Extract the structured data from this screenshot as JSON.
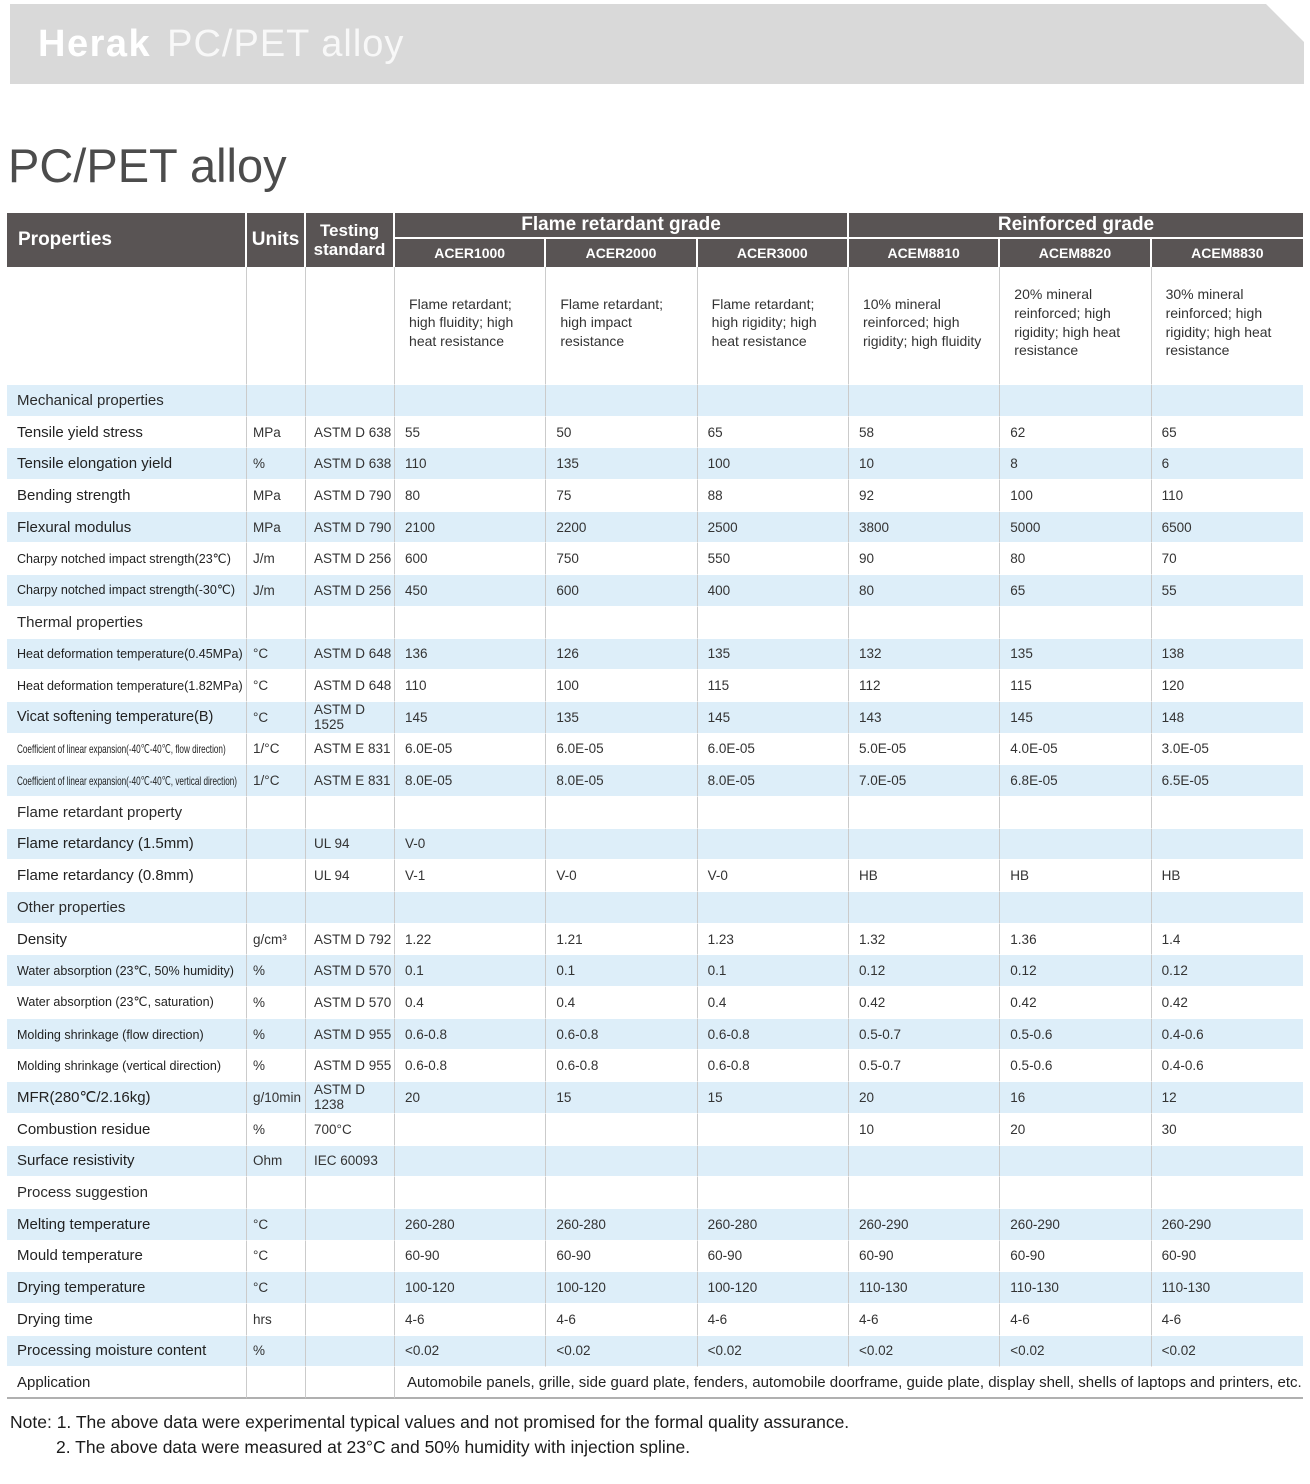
{
  "banner": {
    "brand": "Herak",
    "subtitle": "PC/PET alloy"
  },
  "page_title": "PC/PET alloy",
  "colors": {
    "banner_bg": "#d9d9d9",
    "header_bg": "#595454",
    "stripe_blue": "#ddeef9",
    "title_gray": "#4c4c4c"
  },
  "table": {
    "header": {
      "properties": "Properties",
      "units": "Units",
      "testing_standard": "Testing standard",
      "groups": [
        {
          "label": "Flame retardant grade",
          "products": [
            "ACER1000",
            "ACER2000",
            "ACER3000"
          ]
        },
        {
          "label": "Reinforced grade",
          "products": [
            "ACEM8810",
            "ACEM8820",
            "ACEM8830"
          ]
        }
      ]
    },
    "descriptions": [
      "Flame retardant; high fluidity; high heat resistance",
      "Flame retardant; high impact resistance",
      "Flame retardant; high rigidity; high heat resistance",
      "10% mineral reinforced; high rigidity; high fluidity",
      "20% mineral reinforced; high rigidity; high heat resistance",
      "30% mineral reinforced; high rigidity; high heat resistance"
    ],
    "rows": [
      {
        "type": "section",
        "label": "Mechanical properties",
        "unit": "",
        "standard": "",
        "values": [
          "",
          "",
          "",
          "",
          "",
          ""
        ]
      },
      {
        "type": "data",
        "label": "Tensile yield stress",
        "unit": "MPa",
        "standard": "ASTM D 638",
        "values": [
          "55",
          "50",
          "65",
          "58",
          "62",
          "65"
        ]
      },
      {
        "type": "data",
        "label": "Tensile elongation yield",
        "unit": "%",
        "standard": "ASTM D 638",
        "values": [
          "110",
          "135",
          "100",
          "10",
          "8",
          "6"
        ]
      },
      {
        "type": "data",
        "label": "Bending strength",
        "unit": "MPa",
        "standard": "ASTM D 790",
        "values": [
          "80",
          "75",
          "88",
          "92",
          "100",
          "110"
        ]
      },
      {
        "type": "data",
        "label": "Flexural modulus",
        "unit": "MPa",
        "standard": "ASTM D 790",
        "values": [
          "2100",
          "2200",
          "2500",
          "3800",
          "5000",
          "6500"
        ]
      },
      {
        "type": "data",
        "label": "Charpy notched impact strength(23℃)",
        "unit": "J/m",
        "standard": "ASTM D 256",
        "values": [
          "600",
          "750",
          "550",
          "90",
          "80",
          "70"
        ]
      },
      {
        "type": "data",
        "label": "Charpy notched impact strength(-30℃)",
        "unit": "J/m",
        "standard": "ASTM D 256",
        "values": [
          "450",
          "600",
          "400",
          "80",
          "65",
          "55"
        ]
      },
      {
        "type": "section",
        "label": "Thermal properties",
        "unit": "",
        "standard": "",
        "values": [
          "",
          "",
          "",
          "",
          "",
          ""
        ]
      },
      {
        "type": "data",
        "label": "Heat deformation temperature(0.45MPa)",
        "unit": "°C",
        "standard": "ASTM D 648",
        "values": [
          "136",
          "126",
          "135",
          "132",
          "135",
          "138"
        ]
      },
      {
        "type": "data",
        "label": "Heat deformation temperature(1.82MPa)",
        "unit": "°C",
        "standard": "ASTM D 648",
        "values": [
          "110",
          "100",
          "115",
          "112",
          "115",
          "120"
        ]
      },
      {
        "type": "data",
        "label": "Vicat softening temperature(B)",
        "unit": "°C",
        "standard": "ASTM D 1525",
        "values": [
          "145",
          "135",
          "145",
          "143",
          "145",
          "148"
        ]
      },
      {
        "type": "data",
        "label": "Coefficient of linear expansion(-40℃-40℃, flow direction)",
        "unit": "1/°C",
        "standard": "ASTM E 831",
        "values": [
          "6.0E-05",
          "6.0E-05",
          "6.0E-05",
          "5.0E-05",
          "4.0E-05",
          "3.0E-05"
        ]
      },
      {
        "type": "data",
        "label": "Coefficient of linear expansion(-40℃-40℃, vertical direction)",
        "unit": "1/°C",
        "standard": "ASTM E 831",
        "values": [
          "8.0E-05",
          "8.0E-05",
          "8.0E-05",
          "7.0E-05",
          "6.8E-05",
          "6.5E-05"
        ]
      },
      {
        "type": "section",
        "label": "Flame retardant property",
        "unit": "",
        "standard": "",
        "values": [
          "",
          "",
          "",
          "",
          "",
          ""
        ]
      },
      {
        "type": "data",
        "label": "Flame retardancy (1.5mm)",
        "unit": "",
        "standard": "UL 94",
        "values": [
          "V-0",
          "",
          "",
          "",
          "",
          ""
        ]
      },
      {
        "type": "data",
        "label": "Flame retardancy (0.8mm)",
        "unit": "",
        "standard": "UL 94",
        "values": [
          "V-1",
          "V-0",
          "V-0",
          "HB",
          "HB",
          "HB"
        ]
      },
      {
        "type": "section",
        "label": "Other properties",
        "unit": "",
        "standard": "",
        "values": [
          "",
          "",
          "",
          "",
          "",
          ""
        ]
      },
      {
        "type": "data",
        "label": "Density",
        "unit": "g/cm³",
        "standard": "ASTM D 792",
        "values": [
          "1.22",
          "1.21",
          "1.23",
          "1.32",
          "1.36",
          "1.4"
        ]
      },
      {
        "type": "data",
        "label": "Water absorption (23℃, 50% humidity)",
        "unit": "%",
        "standard": "ASTM D 570",
        "values": [
          "0.1",
          "0.1",
          "0.1",
          "0.12",
          "0.12",
          "0.12"
        ]
      },
      {
        "type": "data",
        "label": "Water absorption (23℃, saturation)",
        "unit": "%",
        "standard": "ASTM D 570",
        "values": [
          "0.4",
          "0.4",
          "0.4",
          "0.42",
          "0.42",
          "0.42"
        ]
      },
      {
        "type": "data",
        "label": "Molding shrinkage (flow direction)",
        "unit": "%",
        "standard": "ASTM D 955",
        "values": [
          "0.6-0.8",
          "0.6-0.8",
          "0.6-0.8",
          "0.5-0.7",
          "0.5-0.6",
          "0.4-0.6"
        ]
      },
      {
        "type": "data",
        "label": "Molding shrinkage (vertical direction)",
        "unit": "%",
        "standard": "ASTM D 955",
        "values": [
          "0.6-0.8",
          "0.6-0.8",
          "0.6-0.8",
          "0.5-0.7",
          "0.5-0.6",
          "0.4-0.6"
        ]
      },
      {
        "type": "data",
        "label": "MFR(280℃/2.16kg)",
        "unit": "g/10min",
        "standard": "ASTM D 1238",
        "values": [
          "20",
          "15",
          "15",
          "20",
          "16",
          "12"
        ]
      },
      {
        "type": "data",
        "label": "Combustion residue",
        "unit": "%",
        "standard": "700°C",
        "values": [
          "",
          "",
          "",
          "10",
          "20",
          "30"
        ]
      },
      {
        "type": "data",
        "label": "Surface resistivity",
        "unit": "Ohm",
        "standard": "IEC 60093",
        "values": [
          "",
          "",
          "",
          "",
          "",
          ""
        ]
      },
      {
        "type": "section",
        "label": "Process suggestion",
        "unit": "",
        "standard": "",
        "values": [
          "",
          "",
          "",
          "",
          "",
          ""
        ]
      },
      {
        "type": "data",
        "label": "Melting temperature",
        "unit": "°C",
        "standard": "",
        "values": [
          "260-280",
          "260-280",
          "260-280",
          "260-290",
          "260-290",
          "260-290"
        ]
      },
      {
        "type": "data",
        "label": "Mould temperature",
        "unit": "°C",
        "standard": "",
        "values": [
          "60-90",
          "60-90",
          "60-90",
          "60-90",
          "60-90",
          "60-90"
        ]
      },
      {
        "type": "data",
        "label": "Drying temperature",
        "unit": "°C",
        "standard": "",
        "values": [
          "100-120",
          "100-120",
          "100-120",
          "110-130",
          "110-130",
          "110-130"
        ]
      },
      {
        "type": "data",
        "label": "Drying time",
        "unit": "hrs",
        "standard": "",
        "values": [
          "4-6",
          "4-6",
          "4-6",
          "4-6",
          "4-6",
          "4-6"
        ]
      },
      {
        "type": "data",
        "label": "Processing moisture content",
        "unit": "%",
        "standard": "",
        "values": [
          "<0.02",
          "<0.02",
          "<0.02",
          "<0.02",
          "<0.02",
          "<0.02"
        ]
      },
      {
        "type": "span",
        "label": "Application",
        "unit": "",
        "standard": "",
        "values": [
          "",
          "",
          "",
          "",
          "",
          ""
        ],
        "span_value": "Automobile panels, grille, side guard plate, fenders, automobile doorframe, guide plate, display shell, shells of laptops and printers, etc."
      }
    ]
  },
  "notes": [
    "Note: 1. The above data were experimental typical values and not promised for the formal quality assurance.",
    "2. The above data were measured at 23°C and 50% humidity with injection spline."
  ]
}
